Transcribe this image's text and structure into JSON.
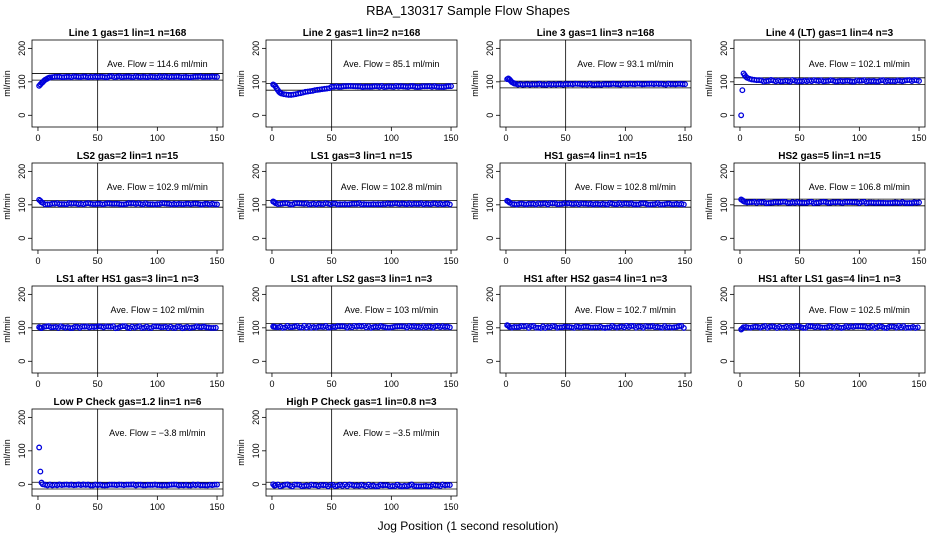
{
  "figure": {
    "title": "RBA_130317  Sample Flow Shapes",
    "xlabel": "Jog Position (1 second resolution)",
    "point_color": "#0000dd",
    "line_color": "#000000"
  },
  "chart_data": [
    {
      "type": "scatter",
      "title": "Line 1 gas=1 lin=1 n=168",
      "annotation": "Ave. Flow = 114.6  ml/min",
      "ylabel": "ml/min",
      "xlim": [
        0,
        150
      ],
      "ylim": [
        0,
        200
      ],
      "xticks": [
        0,
        50,
        100,
        150
      ],
      "yticks": [
        0,
        100,
        200
      ],
      "vline": 50,
      "hlines": [
        105,
        125
      ],
      "points": [
        [
          1,
          88
        ],
        [
          2,
          92
        ],
        [
          3,
          96
        ],
        [
          4,
          99
        ],
        [
          5,
          103
        ],
        [
          6,
          106
        ],
        [
          7,
          108
        ],
        [
          8,
          110
        ],
        [
          9,
          112
        ],
        [
          10,
          113
        ],
        [
          12,
          114
        ],
        [
          14,
          115
        ]
      ],
      "flat_from": 16,
      "flat_to": 150,
      "flat_step": 2,
      "flat_value": 115,
      "noise": 1.5
    },
    {
      "type": "scatter",
      "title": "Line 2 gas=1 lin=2 n=168",
      "annotation": "Ave. Flow = 85.1  ml/min",
      "ylabel": "ml/min",
      "xlim": [
        0,
        150
      ],
      "ylim": [
        0,
        200
      ],
      "xticks": [
        0,
        50,
        100,
        150
      ],
      "yticks": [
        0,
        100,
        200
      ],
      "vline": 50,
      "hlines": [
        75,
        95
      ],
      "points": [
        [
          1,
          92
        ],
        [
          2,
          90
        ],
        [
          3,
          86
        ],
        [
          4,
          80
        ],
        [
          5,
          75
        ],
        [
          6,
          70
        ],
        [
          7,
          67
        ],
        [
          8,
          65
        ],
        [
          10,
          63
        ],
        [
          12,
          62
        ],
        [
          14,
          61
        ],
        [
          16,
          61
        ],
        [
          18,
          62
        ],
        [
          20,
          63
        ],
        [
          22,
          65
        ],
        [
          24,
          66
        ],
        [
          26,
          68
        ],
        [
          28,
          70
        ],
        [
          30,
          71
        ],
        [
          32,
          72
        ],
        [
          34,
          73
        ],
        [
          36,
          75
        ],
        [
          38,
          76
        ],
        [
          40,
          77
        ],
        [
          42,
          78
        ],
        [
          44,
          79
        ],
        [
          46,
          80
        ],
        [
          48,
          81
        ]
      ],
      "flat_from": 50,
      "flat_to": 150,
      "flat_step": 2,
      "flat_value": 86,
      "noise": 1.5
    },
    {
      "type": "scatter",
      "title": "Line 3 gas=1 lin=3 n=168",
      "annotation": "Ave. Flow = 93.1  ml/min",
      "ylabel": "ml/min",
      "xlim": [
        0,
        150
      ],
      "ylim": [
        0,
        200
      ],
      "xticks": [
        0,
        50,
        100,
        150
      ],
      "yticks": [
        0,
        100,
        200
      ],
      "vline": 50,
      "hlines": [
        82,
        102
      ],
      "points": [
        [
          1,
          108
        ],
        [
          2,
          110
        ],
        [
          3,
          107
        ],
        [
          4,
          103
        ],
        [
          5,
          99
        ],
        [
          6,
          97
        ],
        [
          7,
          95
        ],
        [
          8,
          94
        ]
      ],
      "flat_from": 10,
      "flat_to": 150,
      "flat_step": 2,
      "flat_value": 93,
      "noise": 1.5
    },
    {
      "type": "scatter",
      "title": "Line 4 (LT) gas=1 lin=4 n=3",
      "annotation": "Ave. Flow = 102.1  ml/min",
      "ylabel": "ml/min",
      "xlim": [
        0,
        150
      ],
      "ylim": [
        0,
        200
      ],
      "xticks": [
        0,
        50,
        100,
        150
      ],
      "yticks": [
        0,
        100,
        200
      ],
      "vline": 50,
      "hlines": [
        92,
        112
      ],
      "points": [
        [
          1,
          0
        ],
        [
          2,
          75
        ],
        [
          3,
          125
        ],
        [
          4,
          120
        ],
        [
          5,
          115
        ],
        [
          6,
          112
        ],
        [
          8,
          109
        ],
        [
          10,
          107
        ],
        [
          12,
          106
        ],
        [
          14,
          105
        ]
      ],
      "flat_from": 16,
      "flat_to": 150,
      "flat_step": 2,
      "flat_value": 103,
      "noise": 2.5
    },
    {
      "type": "scatter",
      "title": "LS2 gas=2 lin=1 n=15",
      "annotation": "Ave. Flow = 102.9  ml/min",
      "ylabel": "ml/min",
      "xlim": [
        0,
        150
      ],
      "ylim": [
        0,
        200
      ],
      "xticks": [
        0,
        50,
        100,
        150
      ],
      "yticks": [
        0,
        100,
        200
      ],
      "vline": 50,
      "hlines": [
        93,
        113
      ],
      "points": [
        [
          1,
          115
        ],
        [
          2,
          112
        ],
        [
          3,
          108
        ],
        [
          4,
          106
        ]
      ],
      "flat_from": 6,
      "flat_to": 150,
      "flat_step": 2,
      "flat_value": 103,
      "noise": 2
    },
    {
      "type": "scatter",
      "title": "LS1 gas=3 lin=1 n=15",
      "annotation": "Ave. Flow = 102.8  ml/min",
      "ylabel": "ml/min",
      "xlim": [
        0,
        150
      ],
      "ylim": [
        0,
        200
      ],
      "xticks": [
        0,
        50,
        100,
        150
      ],
      "yticks": [
        0,
        100,
        200
      ],
      "vline": 50,
      "hlines": [
        93,
        113
      ],
      "points": [
        [
          1,
          110
        ],
        [
          2,
          108
        ],
        [
          3,
          105
        ]
      ],
      "flat_from": 5,
      "flat_to": 150,
      "flat_step": 2,
      "flat_value": 103,
      "noise": 2
    },
    {
      "type": "scatter",
      "title": "HS1 gas=4 lin=1 n=15",
      "annotation": "Ave. Flow = 102.8  ml/min",
      "ylabel": "ml/min",
      "xlim": [
        0,
        150
      ],
      "ylim": [
        0,
        200
      ],
      "xticks": [
        0,
        50,
        100,
        150
      ],
      "yticks": [
        0,
        100,
        200
      ],
      "vline": 50,
      "hlines": [
        93,
        113
      ],
      "points": [
        [
          1,
          112
        ],
        [
          2,
          110
        ],
        [
          3,
          107
        ]
      ],
      "flat_from": 5,
      "flat_to": 150,
      "flat_step": 2,
      "flat_value": 103,
      "noise": 2
    },
    {
      "type": "scatter",
      "title": "HS2 gas=5 lin=1 n=15",
      "annotation": "Ave. Flow = 106.8  ml/min",
      "ylabel": "ml/min",
      "xlim": [
        0,
        150
      ],
      "ylim": [
        0,
        200
      ],
      "xticks": [
        0,
        50,
        100,
        150
      ],
      "yticks": [
        0,
        100,
        200
      ],
      "vline": 50,
      "hlines": [
        97,
        117
      ],
      "points": [
        [
          1,
          116
        ],
        [
          2,
          114
        ],
        [
          3,
          111
        ],
        [
          4,
          109
        ]
      ],
      "flat_from": 6,
      "flat_to": 150,
      "flat_step": 2,
      "flat_value": 107,
      "noise": 2
    },
    {
      "type": "scatter",
      "title": "LS1 after HS1 gas=3 lin=1 n=3",
      "annotation": "Ave. Flow = 102  ml/min",
      "ylabel": "ml/min",
      "xlim": [
        0,
        150
      ],
      "ylim": [
        0,
        200
      ],
      "xticks": [
        0,
        50,
        100,
        150
      ],
      "yticks": [
        0,
        100,
        200
      ],
      "vline": 50,
      "hlines": [
        92,
        112
      ],
      "points": [
        [
          1,
          102
        ],
        [
          2,
          100
        ]
      ],
      "flat_from": 3,
      "flat_to": 150,
      "flat_step": 2,
      "flat_value": 102,
      "noise": 3
    },
    {
      "type": "scatter",
      "title": "LS1 after LS2 gas=3 lin=1 n=3",
      "annotation": "Ave. Flow = 103  ml/min",
      "ylabel": "ml/min",
      "xlim": [
        0,
        150
      ],
      "ylim": [
        0,
        200
      ],
      "xticks": [
        0,
        50,
        100,
        150
      ],
      "yticks": [
        0,
        100,
        200
      ],
      "vline": 50,
      "hlines": [
        93,
        113
      ],
      "points": [
        [
          1,
          104
        ],
        [
          2,
          103
        ]
      ],
      "flat_from": 3,
      "flat_to": 150,
      "flat_step": 2,
      "flat_value": 103,
      "noise": 3
    },
    {
      "type": "scatter",
      "title": "HS1 after HS2 gas=4 lin=1 n=3",
      "annotation": "Ave. Flow = 102.7  ml/min",
      "ylabel": "ml/min",
      "xlim": [
        0,
        150
      ],
      "ylim": [
        0,
        200
      ],
      "xticks": [
        0,
        50,
        100,
        150
      ],
      "yticks": [
        0,
        100,
        200
      ],
      "vline": 50,
      "hlines": [
        93,
        113
      ],
      "points": [
        [
          1,
          108
        ],
        [
          2,
          106
        ]
      ],
      "flat_from": 3,
      "flat_to": 150,
      "flat_step": 2,
      "flat_value": 102.7,
      "noise": 3
    },
    {
      "type": "scatter",
      "title": "HS1 after LS1 gas=4 lin=1 n=3",
      "annotation": "Ave. Flow = 102.5  ml/min",
      "ylabel": "ml/min",
      "xlim": [
        0,
        150
      ],
      "ylim": [
        0,
        200
      ],
      "xticks": [
        0,
        50,
        100,
        150
      ],
      "yticks": [
        0,
        100,
        200
      ],
      "vline": 50,
      "hlines": [
        93,
        113
      ],
      "points": [
        [
          1,
          95
        ],
        [
          2,
          98
        ]
      ],
      "flat_from": 3,
      "flat_to": 150,
      "flat_step": 2,
      "flat_value": 102.5,
      "noise": 3
    },
    {
      "type": "scatter",
      "title": "Low P Check gas=1.2 lin=1 n=6",
      "annotation": "Ave. Flow = −3.8  ml/min",
      "ylabel": "ml/min",
      "xlim": [
        0,
        150
      ],
      "ylim": [
        0,
        200
      ],
      "xticks": [
        0,
        50,
        100,
        150
      ],
      "yticks": [
        0,
        100,
        200
      ],
      "vline": 50,
      "hlines": [
        -14,
        6
      ],
      "points": [
        [
          1,
          110
        ],
        [
          2,
          38
        ],
        [
          3,
          5
        ],
        [
          4,
          0
        ]
      ],
      "flat_from": 6,
      "flat_to": 150,
      "flat_step": 2,
      "flat_value": -2,
      "noise": 1.5
    },
    {
      "type": "scatter",
      "title": "High P Check gas=1 lin=0.8 n=3",
      "annotation": "Ave. Flow = −3.5  ml/min",
      "ylabel": "ml/min",
      "xlim": [
        0,
        150
      ],
      "ylim": [
        0,
        200
      ],
      "xticks": [
        0,
        50,
        100,
        150
      ],
      "yticks": [
        0,
        100,
        200
      ],
      "vline": 50,
      "hlines": [
        -14,
        6
      ],
      "points": [
        [
          1,
          0
        ],
        [
          2,
          -4
        ]
      ],
      "flat_from": 3,
      "flat_to": 150,
      "flat_step": 2,
      "flat_value": -3.5,
      "noise": 3
    }
  ]
}
